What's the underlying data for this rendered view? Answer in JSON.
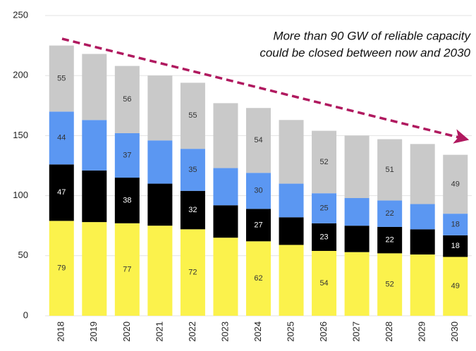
{
  "chart_data": {
    "type": "stacked_bar",
    "annotation": [
      "More than 90 GW of reliable capacity",
      "could be closed between now and 2030"
    ],
    "categories": [
      "2018",
      "2019",
      "2020",
      "2021",
      "2022",
      "2023",
      "2024",
      "2025",
      "2026",
      "2027",
      "2028",
      "2029",
      "2030"
    ],
    "series": [
      {
        "color": "#fbf24c",
        "values": [
          79,
          78,
          77,
          75,
          72,
          65,
          62,
          59,
          54,
          53,
          52,
          51,
          49
        ],
        "value_labels": [
          "79",
          null,
          "77",
          null,
          "72",
          null,
          "62",
          null,
          "54",
          null,
          "52",
          null,
          "49"
        ]
      },
      {
        "color": "#000000",
        "values": [
          47,
          43,
          38,
          35,
          32,
          27,
          27,
          23,
          23,
          22,
          22,
          21,
          18
        ],
        "value_labels": [
          "47",
          null,
          "38",
          null,
          "32",
          null,
          "27",
          null,
          "23",
          null,
          "22",
          null,
          "18"
        ]
      },
      {
        "color": "#5b97f2",
        "values": [
          44,
          42,
          37,
          36,
          35,
          31,
          30,
          28,
          25,
          23,
          22,
          21,
          18
        ],
        "value_labels": [
          "44",
          null,
          "37",
          null,
          "35",
          null,
          "30",
          null,
          "25",
          null,
          "22",
          null,
          "18"
        ]
      },
      {
        "color": "#c9c9c9",
        "values": [
          55,
          55,
          56,
          54,
          55,
          54,
          54,
          53,
          52,
          52,
          51,
          50,
          49
        ],
        "value_labels": [
          "55",
          null,
          "56",
          null,
          "55",
          null,
          "54",
          null,
          "52",
          null,
          "51",
          null,
          "49"
        ]
      }
    ],
    "ylim": [
      0,
      250
    ],
    "yticks": [
      0,
      50,
      100,
      150,
      200,
      250
    ],
    "grid": true,
    "arrow_color": "#b0195f"
  }
}
